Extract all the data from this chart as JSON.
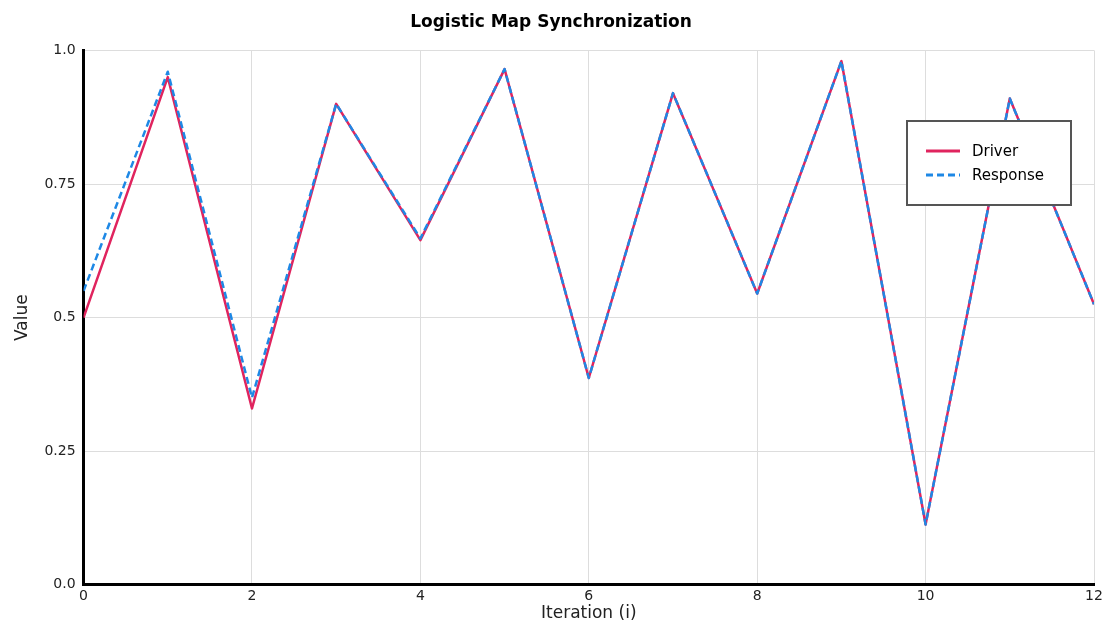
{
  "chart_data": {
    "type": "line",
    "title": "Logistic Map Synchronization",
    "xlabel": "Iteration (i)",
    "ylabel": "Value",
    "x": [
      0,
      1,
      2,
      3,
      4,
      5,
      6,
      7,
      8,
      9,
      10,
      11,
      12
    ],
    "series": [
      {
        "name": "Driver",
        "color": "#e0245e",
        "line_style": "solid",
        "values": [
          0.5,
          0.95,
          0.33,
          0.9,
          0.645,
          0.965,
          0.387,
          0.92,
          0.545,
          0.98,
          0.113,
          0.91,
          0.525
        ]
      },
      {
        "name": "Response",
        "color": "#1e88e5",
        "line_style": "dashed",
        "values": [
          0.55,
          0.96,
          0.35,
          0.9,
          0.648,
          0.965,
          0.387,
          0.92,
          0.545,
          0.98,
          0.113,
          0.91,
          0.525
        ]
      }
    ],
    "xlim": [
      0,
      12
    ],
    "xticks": [
      0,
      2,
      4,
      6,
      8,
      10,
      12
    ],
    "ylim": [
      0,
      1
    ],
    "yticks": [
      {
        "value": 0,
        "label": "0.0"
      },
      0.25,
      0.5,
      0.75,
      {
        "value": 1,
        "label": "1.0"
      }
    ],
    "grid": true,
    "legend": "top right",
    "marker": "none"
  }
}
